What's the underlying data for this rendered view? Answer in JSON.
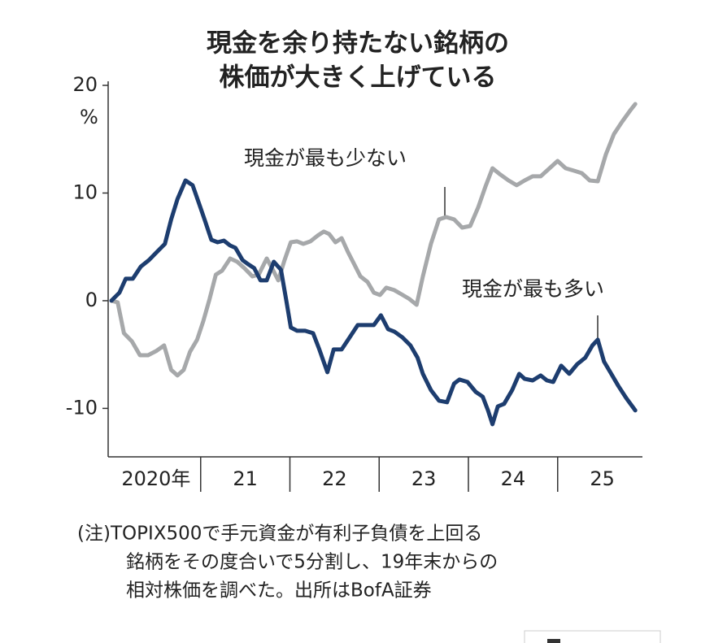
{
  "chart_data": {
    "type": "line",
    "title": [
      "現金を余り持たない銘柄の",
      "株価が大きく上げている"
    ],
    "y_unit": "%",
    "ylim": [
      -14.5,
      20
    ],
    "yticks": [
      20,
      10,
      0,
      -10
    ],
    "xlim": [
      2020,
      2025.95
    ],
    "xticks": [
      2021,
      2022,
      2023,
      2024,
      2025
    ],
    "categories": [
      "2020年",
      "21",
      "22",
      "23",
      "24",
      "25"
    ],
    "series": [
      {
        "name": "現金が最も少ない",
        "color": "#a6a8aa",
        "x": [
          2020.0,
          2020.07,
          2020.14,
          2020.23,
          2020.32,
          2020.41,
          2020.5,
          2020.59,
          2020.67,
          2020.74,
          2020.81,
          2020.88,
          2020.96,
          2021.03,
          2021.1,
          2021.17,
          2021.24,
          2021.33,
          2021.41,
          2021.49,
          2021.58,
          2021.65,
          2021.74,
          2021.8,
          2021.87,
          2021.94,
          2022.01,
          2022.08,
          2022.15,
          2022.23,
          2022.31,
          2022.38,
          2022.44,
          2022.51,
          2022.58,
          2022.65,
          2022.72,
          2022.79,
          2022.87,
          2022.94,
          2023.01,
          2023.08,
          2023.17,
          2023.25,
          2023.34,
          2023.42,
          2023.49,
          2023.58,
          2023.67,
          2023.75,
          2023.84,
          2023.93,
          2024.02,
          2024.11,
          2024.19,
          2024.27,
          2024.36,
          2024.45,
          2024.54,
          2024.63,
          2024.72,
          2024.81,
          2024.9,
          2025.0,
          2025.09,
          2025.18,
          2025.27,
          2025.36,
          2025.45,
          2025.54,
          2025.63,
          2025.72,
          2025.82,
          2025.87
        ],
        "values": [
          0,
          -0.15,
          -3.02,
          -3.77,
          -5.06,
          -5.06,
          -4.68,
          -4.15,
          -6.42,
          -6.94,
          -6.42,
          -4.75,
          -3.62,
          -1.89,
          0.15,
          2.42,
          2.79,
          3.92,
          3.62,
          3.02,
          2.26,
          2.42,
          3.92,
          3.02,
          1.89,
          3.77,
          5.43,
          5.51,
          5.28,
          5.51,
          6.04,
          6.42,
          6.19,
          5.43,
          5.81,
          4.53,
          3.4,
          2.26,
          1.74,
          0.75,
          0.53,
          1.21,
          0.98,
          0.6,
          0.15,
          -0.38,
          2.26,
          5.28,
          7.55,
          7.77,
          7.55,
          6.79,
          6.94,
          8.68,
          10.57,
          12.3,
          11.7,
          11.17,
          10.72,
          11.17,
          11.55,
          11.55,
          12.23,
          12.98,
          12.3,
          12.08,
          11.85,
          11.17,
          11.09,
          13.58,
          15.47,
          16.6,
          17.74,
          18.26
        ]
      },
      {
        "name": "現金が最も多い",
        "color": "#1d3d6f",
        "x": [
          2020.0,
          2020.09,
          2020.16,
          2020.24,
          2020.33,
          2020.42,
          2020.51,
          2020.6,
          2020.67,
          2020.74,
          2020.83,
          2020.91,
          2020.98,
          2021.05,
          2021.12,
          2021.19,
          2021.26,
          2021.33,
          2021.39,
          2021.47,
          2021.53,
          2021.6,
          2021.67,
          2021.74,
          2021.82,
          2021.9,
          2021.96,
          2022.01,
          2022.08,
          2022.17,
          2022.26,
          2022.33,
          2022.42,
          2022.49,
          2022.58,
          2022.67,
          2022.76,
          2022.85,
          2022.94,
          2023.02,
          2023.1,
          2023.17,
          2023.26,
          2023.35,
          2023.43,
          2023.49,
          2023.58,
          2023.67,
          2023.76,
          2023.84,
          2023.9,
          2023.99,
          2024.08,
          2024.16,
          2024.22,
          2024.27,
          2024.33,
          2024.4,
          2024.49,
          2024.57,
          2024.63,
          2024.72,
          2024.81,
          2024.88,
          2024.95,
          2025.04,
          2025.13,
          2025.22,
          2025.31,
          2025.39,
          2025.45,
          2025.52,
          2025.59,
          2025.68,
          2025.77,
          2025.87
        ],
        "values": [
          0,
          0.75,
          2.04,
          2.04,
          3.17,
          3.77,
          4.53,
          5.28,
          7.55,
          9.43,
          11.17,
          10.72,
          9.06,
          7.4,
          5.66,
          5.43,
          5.58,
          5.13,
          4.91,
          3.77,
          3.4,
          3.02,
          1.89,
          1.89,
          3.62,
          2.87,
          0,
          -2.49,
          -2.79,
          -2.79,
          -3.02,
          -4.53,
          -6.64,
          -4.53,
          -4.53,
          -3.4,
          -2.26,
          -2.26,
          -2.26,
          -1.36,
          -2.64,
          -2.87,
          -3.4,
          -4.15,
          -5.28,
          -6.79,
          -8.3,
          -9.28,
          -9.43,
          -7.7,
          -7.32,
          -7.55,
          -8.45,
          -8.91,
          -10.19,
          -11.47,
          -9.81,
          -9.58,
          -8.3,
          -6.79,
          -7.25,
          -7.4,
          -6.94,
          -7.4,
          -7.55,
          -6.04,
          -6.79,
          -5.89,
          -5.28,
          -4.15,
          -3.62,
          -5.66,
          -6.64,
          -7.92,
          -9.06,
          -10.19
        ]
      }
    ],
    "note": [
      "(注)TOPIX500で手元資金が有利子負債を上回る",
      "銘柄をその度合いで5分割し、19年末からの",
      "相対株価を調べた。出所はBofA証券"
    ]
  }
}
